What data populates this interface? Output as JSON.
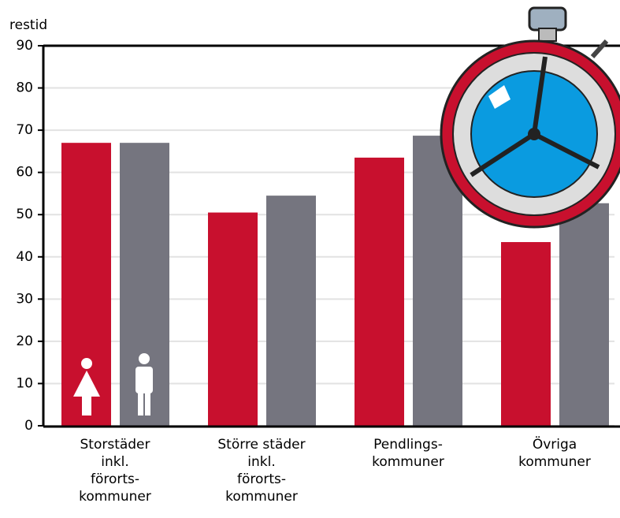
{
  "chart_data": {
    "type": "bar",
    "y_label": "restid",
    "categories": [
      "Storstäder\ninkl.\nförorts-\nkommuner",
      "Större städer\ninkl.\nförorts-\nkommuner",
      "Pendlings-\nkommuner",
      "Övriga\nkommuner"
    ],
    "series": [
      {
        "color": "#c8102e",
        "values": [
          67,
          50.5,
          63.5,
          43.5
        ]
      },
      {
        "color": "#75757f",
        "values": [
          67,
          54.5,
          68.7,
          52.7
        ]
      }
    ],
    "ylim": [
      0,
      90
    ],
    "yticks": [
      0,
      10,
      20,
      30,
      40,
      50,
      60,
      70,
      80,
      90
    ],
    "grid": true
  }
}
